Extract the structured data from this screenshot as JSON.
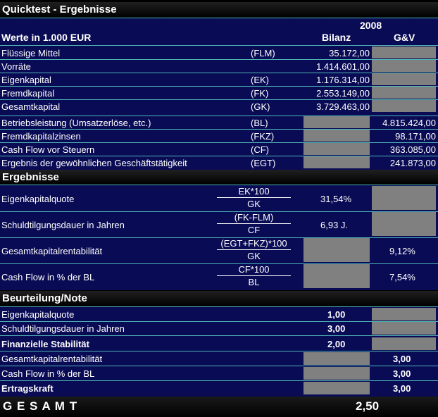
{
  "title": "Quicktest - Ergebnisse",
  "header": {
    "year": "2008",
    "units": "Werte in 1.000 EUR",
    "col_bilanz": "Bilanz",
    "col_guv": "G&V"
  },
  "basis_rows": [
    {
      "label": "Flüssige Mittel",
      "abbr": "(FLM)",
      "bilanz": "35.172,00",
      "guv": ""
    },
    {
      "label": "Vorräte",
      "abbr": "",
      "bilanz": "1.414.601,00",
      "guv": ""
    },
    {
      "label": "Eigenkapital",
      "abbr": "(EK)",
      "bilanz": "1.176.314,00",
      "guv": ""
    },
    {
      "label": "Fremdkapital",
      "abbr": "(FK)",
      "bilanz": "2.553.149,00",
      "guv": ""
    },
    {
      "label": "Gesamtkapital",
      "abbr": "(GK)",
      "bilanz": "3.729.463,00",
      "guv": ""
    },
    {
      "label": "Betriebsleistung (Umsatzerlöse, etc.)",
      "abbr": "(BL)",
      "bilanz": "",
      "guv": "4.815.424,00"
    },
    {
      "label": "Fremdkapitalzinsen",
      "abbr": "(FKZ)",
      "bilanz": "",
      "guv": "98.171,00"
    },
    {
      "label": "Cash Flow vor Steuern",
      "abbr": "(CF)",
      "bilanz": "",
      "guv": "363.085,00"
    },
    {
      "label": "Ergebnis der gewöhnlichen Geschäftstätigkeit",
      "abbr": "(EGT)",
      "bilanz": "",
      "guv": "241.873,00"
    }
  ],
  "ergebnisse": {
    "title": "Ergebnisse",
    "rows": [
      {
        "label": "Eigenkapitalquote",
        "numerator": "EK*100",
        "denominator": "GK",
        "bilanz": "31,54%",
        "guv": ""
      },
      {
        "label": "Schuldtilgungsdauer in Jahren",
        "numerator": "(FK-FLM)",
        "denominator": "CF",
        "bilanz": "6,93 J.",
        "guv": ""
      },
      {
        "label": "Gesamtkapitalrentabilität",
        "numerator": "(EGT+FKZ)*100",
        "denominator": "GK",
        "bilanz": "",
        "guv": "9,12%"
      },
      {
        "label": "Cash Flow in % der BL",
        "numerator": "CF*100",
        "denominator": "BL",
        "bilanz": "",
        "guv": "7,54%"
      }
    ]
  },
  "beurteilung": {
    "title": "Beurteilung/Note",
    "rows": [
      {
        "label": "Eigenkapitalquote",
        "bilanz": "1,00",
        "guv": ""
      },
      {
        "label": "Schuldtilgungsdauer in Jahren",
        "bilanz": "3,00",
        "guv": ""
      },
      {
        "label": "Finanzielle Stabilität",
        "bilanz": "2,00",
        "guv": ""
      },
      {
        "label": "Gesamtkapitalrentabilität",
        "bilanz": "",
        "guv": "3,00"
      },
      {
        "label": "Cash Flow in % der BL",
        "bilanz": "",
        "guv": "3,00"
      },
      {
        "label": "Ertragskraft",
        "bilanz": "",
        "guv": "3,00"
      }
    ]
  },
  "gesamt": {
    "label": "G E S A M T",
    "value": "2,50"
  },
  "colors": {
    "navy": "#0a0b55",
    "grey": "#808080",
    "separator": "#4fb6b8"
  }
}
